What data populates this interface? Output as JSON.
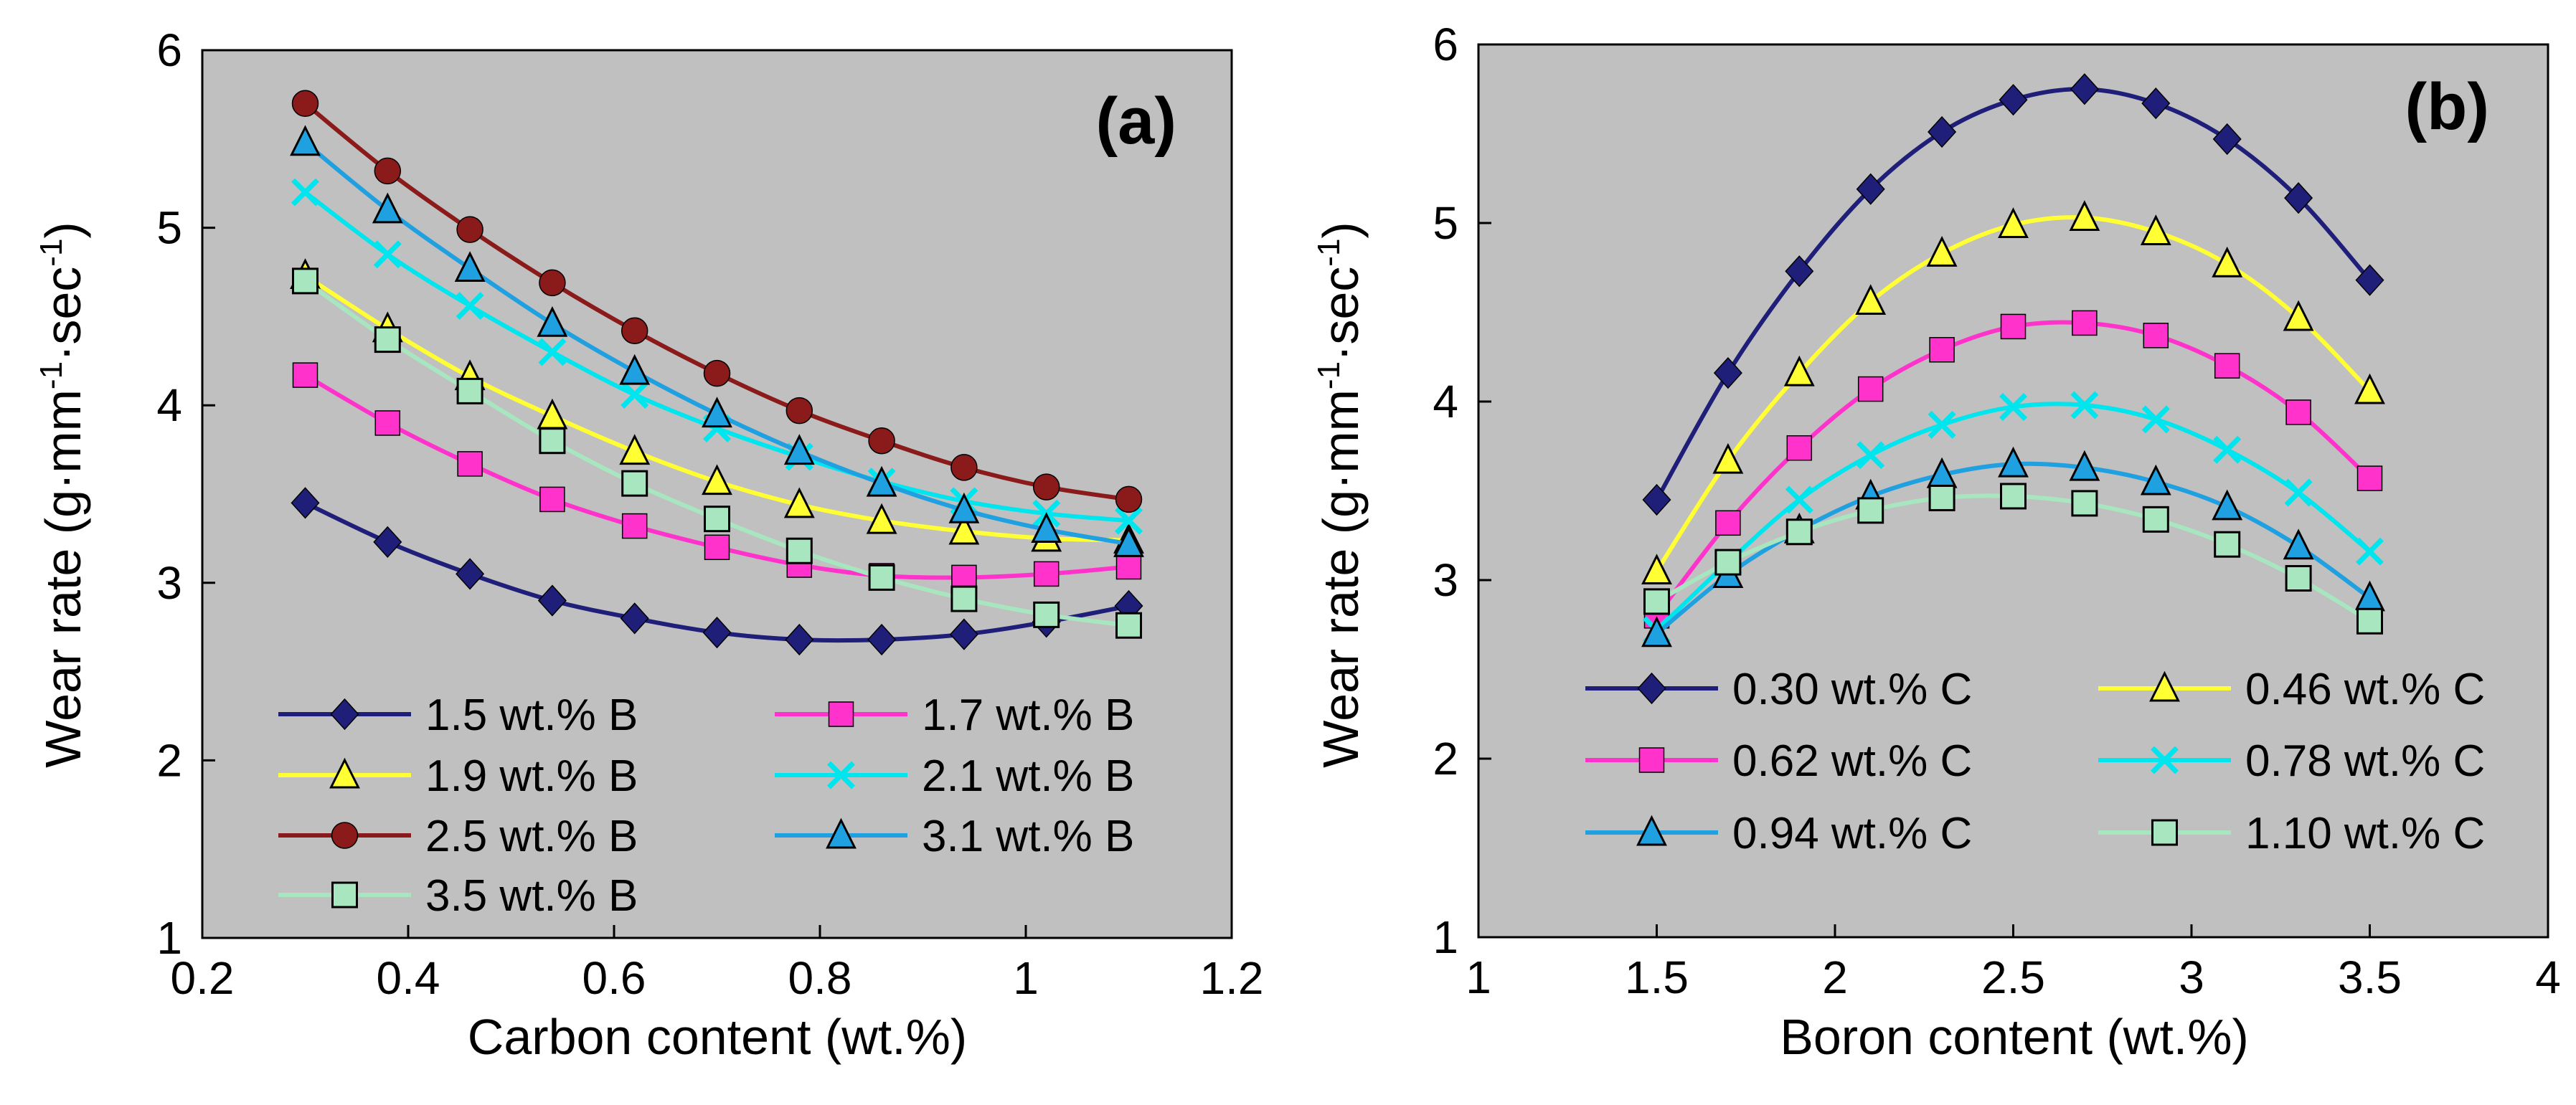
{
  "chart_data": [
    {
      "type": "line",
      "panel_label": "(a)",
      "xlabel": "Carbon content (wt.%)",
      "ylabel_main": "Wear rate (g·mm",
      "ylabel_sup1": "-1",
      "ylabel_mid": "·sec",
      "ylabel_sup2": "-1",
      "ylabel_end": ")",
      "xlim": [
        0.2,
        1.2
      ],
      "ylim": [
        1,
        6
      ],
      "xticks": [
        0.2,
        0.4,
        0.6,
        0.8,
        1,
        1.2
      ],
      "xtick_labels": [
        "0.2",
        "0.4",
        "0.6",
        "0.8",
        "1",
        "1.2"
      ],
      "yticks": [
        1,
        2,
        3,
        4,
        5,
        6
      ],
      "ytick_labels": [
        "1",
        "2",
        "3",
        "4",
        "5",
        "6"
      ],
      "grid": false,
      "legend_position": "bottom-center",
      "x": [
        0.3,
        0.38,
        0.46,
        0.54,
        0.62,
        0.7,
        0.78,
        0.86,
        0.94,
        1.02,
        1.1
      ],
      "series": [
        {
          "name": "1.5 wt.% B",
          "label": "1.5 wt.% B",
          "color": "#1f1f7a",
          "marker": "diamond",
          "values": [
            3.45,
            3.23,
            3.05,
            2.9,
            2.8,
            2.72,
            2.68,
            2.68,
            2.71,
            2.78,
            2.87
          ]
        },
        {
          "name": "1.7 wt.% B",
          "label": "1.7 wt.% B",
          "color": "#ff33cc",
          "marker": "square-filled",
          "values": [
            4.17,
            3.9,
            3.67,
            3.47,
            3.32,
            3.2,
            3.1,
            3.04,
            3.03,
            3.05,
            3.09
          ]
        },
        {
          "name": "1.9 wt.% B",
          "label": "1.9 wt.% B",
          "color": "#ffff33",
          "marker": "triangle",
          "values": [
            4.73,
            4.43,
            4.16,
            3.94,
            3.74,
            3.57,
            3.44,
            3.35,
            3.29,
            3.25,
            3.24
          ]
        },
        {
          "name": "2.1 wt.% B",
          "label": "2.1 wt.% B",
          "color": "#00e5ee",
          "marker": "x",
          "values": [
            5.2,
            4.85,
            4.56,
            4.3,
            4.06,
            3.87,
            3.71,
            3.57,
            3.46,
            3.39,
            3.35
          ]
        },
        {
          "name": "2.5 wt.% B",
          "label": "2.5 wt.% B",
          "color": "#8b1a1a",
          "marker": "circle",
          "values": [
            5.7,
            5.32,
            4.99,
            4.69,
            4.42,
            4.18,
            3.97,
            3.8,
            3.65,
            3.54,
            3.47
          ]
        },
        {
          "name": "3.1 wt.% B",
          "label": "3.1 wt.% B",
          "color": "#1fa0e0",
          "marker": "triangle",
          "values": [
            5.48,
            5.1,
            4.77,
            4.46,
            4.19,
            3.95,
            3.74,
            3.56,
            3.41,
            3.3,
            3.22
          ]
        },
        {
          "name": "3.5 wt.% B",
          "label": "3.5 wt.% B",
          "color": "#a8e6c0",
          "marker": "square-open",
          "values": [
            4.7,
            4.37,
            4.08,
            3.8,
            3.56,
            3.36,
            3.18,
            3.03,
            2.91,
            2.82,
            2.76
          ]
        }
      ]
    },
    {
      "type": "line",
      "panel_label": "(b)",
      "xlabel": "Boron content (wt.%)",
      "ylabel_main": "Wear rate (g·mm",
      "ylabel_sup1": "-1",
      "ylabel_mid": "·sec",
      "ylabel_sup2": "-1",
      "ylabel_end": ")",
      "xlim": [
        1,
        4
      ],
      "ylim": [
        1,
        6
      ],
      "xticks": [
        1,
        1.5,
        2,
        2.5,
        3,
        3.5,
        4
      ],
      "xtick_labels": [
        "1",
        "1.5",
        "2",
        "2.5",
        "3",
        "3.5",
        "4"
      ],
      "yticks": [
        1,
        2,
        3,
        4,
        5,
        6
      ],
      "ytick_labels": [
        "1",
        "2",
        "3",
        "4",
        "5",
        "6"
      ],
      "grid": false,
      "legend_position": "bottom-center",
      "x": [
        1.5,
        1.7,
        1.9,
        2.1,
        2.3,
        2.5,
        2.7,
        2.9,
        3.1,
        3.3,
        3.5
      ],
      "series": [
        {
          "name": "0.30 wt.% C",
          "label": "0.30 wt.% C",
          "color": "#1f1f7a",
          "marker": "diamond",
          "values": [
            3.45,
            4.16,
            4.73,
            5.19,
            5.51,
            5.69,
            5.75,
            5.67,
            5.47,
            5.14,
            4.68
          ]
        },
        {
          "name": "0.46 wt.% C",
          "label": "0.46 wt.% C",
          "color": "#ffff33",
          "marker": "triangle",
          "values": [
            3.05,
            3.67,
            4.16,
            4.56,
            4.83,
            4.99,
            5.03,
            4.95,
            4.77,
            4.47,
            4.06
          ]
        },
        {
          "name": "0.62 wt.% C",
          "label": "0.62 wt.% C",
          "color": "#ff33cc",
          "marker": "square-filled",
          "values": [
            2.8,
            3.32,
            3.74,
            4.07,
            4.29,
            4.42,
            4.44,
            4.37,
            4.2,
            3.94,
            3.57
          ]
        },
        {
          "name": "0.78 wt.% C",
          "label": "0.78 wt.% C",
          "color": "#00e5ee",
          "marker": "x",
          "values": [
            2.72,
            3.1,
            3.45,
            3.7,
            3.87,
            3.97,
            3.98,
            3.9,
            3.73,
            3.49,
            3.16
          ]
        },
        {
          "name": "0.94 wt.% C",
          "label": "0.94 wt.% C",
          "color": "#1fa0e0",
          "marker": "triangle",
          "values": [
            2.7,
            3.03,
            3.28,
            3.47,
            3.59,
            3.65,
            3.63,
            3.55,
            3.41,
            3.19,
            2.9
          ]
        },
        {
          "name": "1.10 wt.% C",
          "label": "1.10 wt.% C",
          "color": "#a8e6c0",
          "marker": "square-open",
          "values": [
            2.88,
            3.1,
            3.27,
            3.39,
            3.46,
            3.47,
            3.43,
            3.34,
            3.2,
            3.01,
            2.77
          ]
        }
      ]
    }
  ]
}
